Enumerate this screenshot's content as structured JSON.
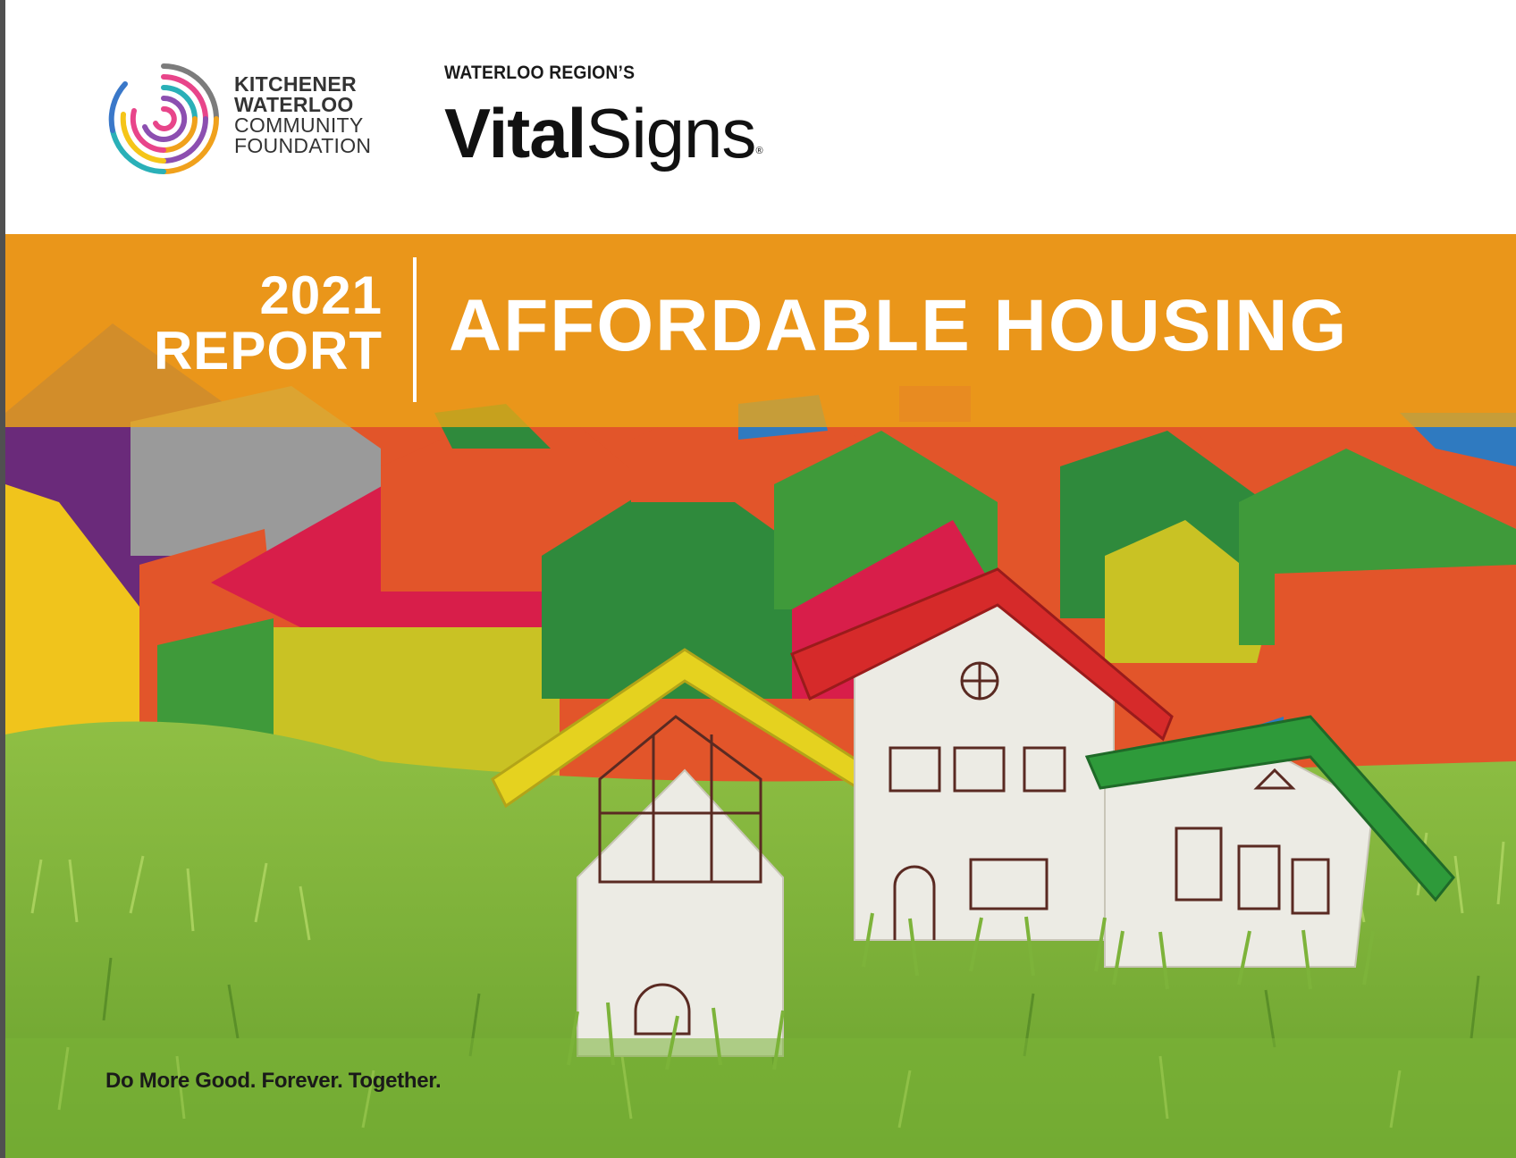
{
  "header": {
    "foundation_logo_icon": "kwcf-spiral-logo",
    "foundation_name": {
      "line1": "KITCHENER",
      "line2": "WATERLOO",
      "line3": "COMMUNITY",
      "line4": "FOUNDATION"
    },
    "vital_signs": {
      "kicker": "WATERLOO REGION’S",
      "wordmark_bold": "Vital",
      "wordmark_light": "Signs",
      "registered_mark": "®"
    }
  },
  "banner": {
    "year": "2021",
    "report_label": "REPORT",
    "title": "AFFORDABLE HOUSING"
  },
  "photo": {
    "icon": "toy-houses-on-grass-photo"
  },
  "footer": {
    "tagline": "Do More Good. Forever. Together."
  },
  "colors": {
    "banner": "#eca616",
    "grass": "#7db33a",
    "roof_yellow": "#e5d21f",
    "roof_red": "#d62a2a",
    "roof_green": "#2e9a3a"
  }
}
